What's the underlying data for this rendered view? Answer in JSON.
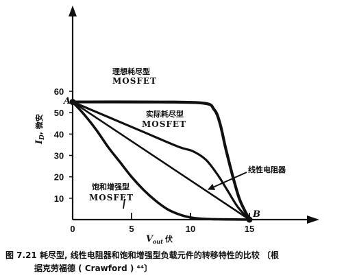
{
  "chart_data": {
    "type": "line",
    "xlabel": "V_out 伏",
    "ylabel": "I_D, 微安",
    "xlim": [
      0,
      15
    ],
    "ylim": [
      0,
      60
    ],
    "x_ticks": [
      0,
      5,
      10,
      15
    ],
    "y_ticks": [
      10,
      20,
      30,
      40,
      50,
      60
    ],
    "point_labels": [
      {
        "text": "A",
        "x": 0,
        "y": 55
      },
      {
        "text": "B",
        "x": 15,
        "y": 0
      }
    ],
    "series": [
      {
        "name": "理想耗尽型 MOSFET",
        "x": [
          0,
          6,
          11,
          12,
          12.5,
          13,
          13.6,
          14.2,
          15
        ],
        "y": [
          55,
          55,
          54.5,
          51.5,
          45,
          33,
          20,
          9,
          0
        ]
      },
      {
        "name": "实际耗尽型 MOSFET",
        "x": [
          0,
          3,
          6,
          9,
          10.2,
          11.3,
          12.3,
          13.1,
          14,
          15
        ],
        "y": [
          55,
          48,
          41,
          34,
          32,
          28,
          21,
          14,
          6,
          0
        ]
      },
      {
        "name": "线性电阻器",
        "x": [
          0,
          15
        ],
        "y": [
          55,
          0
        ]
      },
      {
        "name": "饱和增强型 MOSFET",
        "x": [
          0,
          1,
          2,
          3,
          4,
          5,
          6,
          7,
          8,
          9,
          10,
          11,
          12,
          13,
          15
        ],
        "y": [
          55,
          49,
          42,
          34,
          27,
          20,
          14,
          9,
          5,
          2.5,
          1,
          0.4,
          0.2,
          0.1,
          0
        ]
      }
    ]
  },
  "annotations": {
    "ideal_cn": "理想耗尽型",
    "ideal_en": "MOSFET",
    "real_cn": "实际耗尽型",
    "real_en": "MOSFET",
    "resistor": "线性电阻器",
    "enh_cn": "饱和增强型",
    "enh_en": "MOSFET",
    "ylabel_main": "I",
    "ylabel_sub": "D",
    "ylabel_rest": ", 微安",
    "xlabel_main": "V",
    "xlabel_sub": "out",
    "xlabel_rest": "伏"
  },
  "caption": {
    "line1": "图 7.21  耗尽型, 线性电阻器和饱和增强型负载元件的转移特性的比较 〔根",
    "line2": "据克劳福德 ( Crawford ) ⁴⁴〕"
  }
}
